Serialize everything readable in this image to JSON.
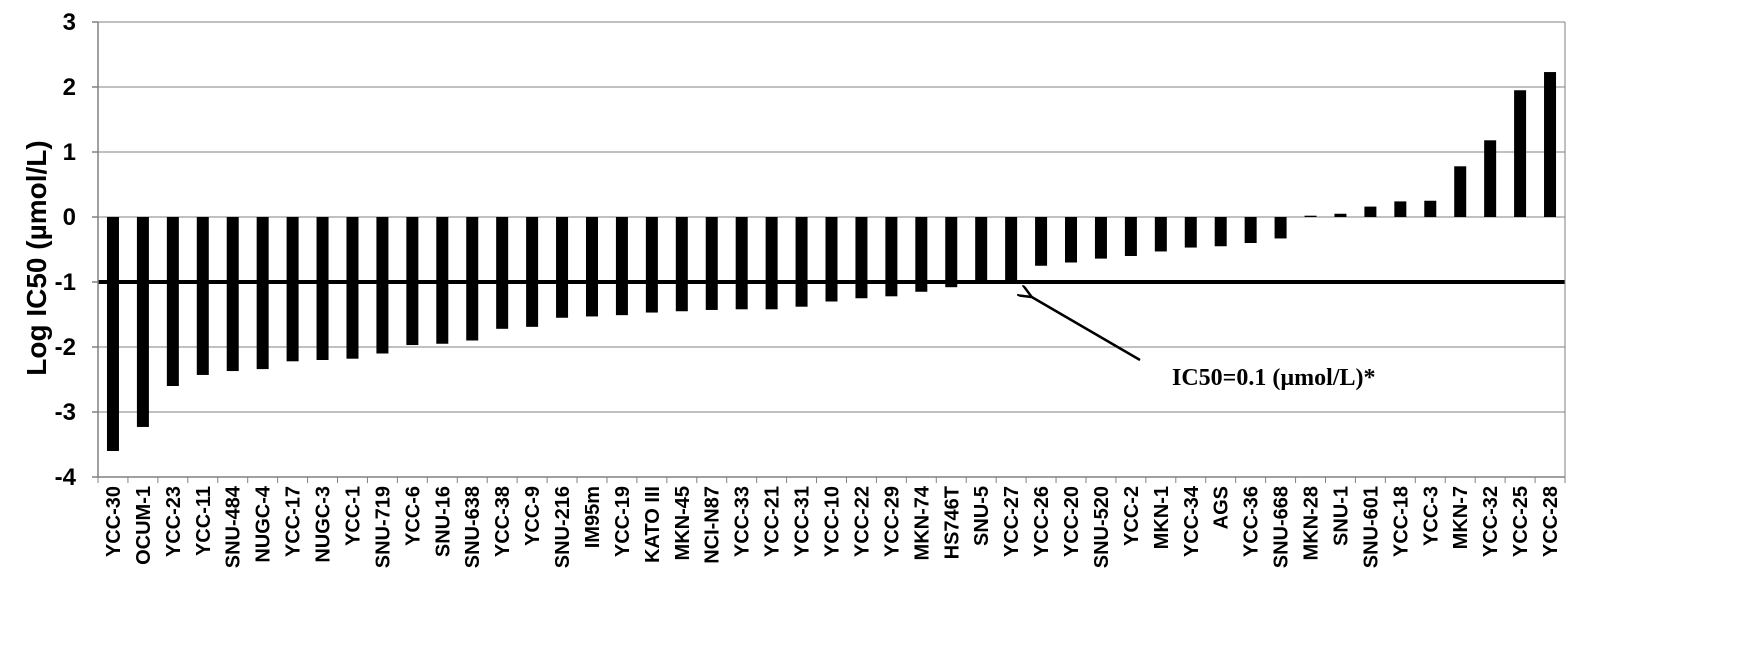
{
  "chart_data": {
    "type": "bar",
    "title": "",
    "xlabel": "",
    "ylabel": "Log IC50 (µmol/L)",
    "ylim": [
      -4,
      3
    ],
    "yticks": [
      3,
      2,
      1,
      0,
      -1,
      -2,
      -3,
      -4
    ],
    "grid": true,
    "legend": "none",
    "bar_color": "#000000",
    "categories": [
      "YCC-30",
      "OCUM-1",
      "YCC-23",
      "YCC-11",
      "SNU-484",
      "NUGC-4",
      "YCC-17",
      "NUGC-3",
      "YCC-1",
      "SNU-719",
      "YCC-6",
      "SNU-16",
      "SNU-638",
      "YCC-38",
      "YCC-9",
      "SNU-216",
      "IM95m",
      "YCC-19",
      "KATO III",
      "MKN-45",
      "NCI-N87",
      "YCC-33",
      "YCC-21",
      "YCC-31",
      "YCC-10",
      "YCC-22",
      "YCC-29",
      "MKN-74",
      "HS746T",
      "SNU-5",
      "YCC-27",
      "YCC-26",
      "YCC-20",
      "SNU-520",
      "YCC-2",
      "MKN-1",
      "YCC-34",
      "AGS",
      "YCC-36",
      "SNU-668",
      "MKN-28",
      "SNU-1",
      "SNU-601",
      "YCC-18",
      "YCC-3",
      "MKN-7",
      "YCC-32",
      "YCC-25",
      "YCC-28"
    ],
    "values": [
      -3.6,
      -3.23,
      -2.6,
      -2.43,
      -2.37,
      -2.34,
      -2.22,
      -2.2,
      -2.18,
      -2.1,
      -1.97,
      -1.95,
      -1.9,
      -1.72,
      -1.69,
      -1.55,
      -1.53,
      -1.51,
      -1.47,
      -1.45,
      -1.43,
      -1.42,
      -1.42,
      -1.38,
      -1.3,
      -1.25,
      -1.22,
      -1.15,
      -1.08,
      -1.0,
      -0.97,
      -0.75,
      -0.7,
      -0.64,
      -0.6,
      -0.53,
      -0.47,
      -0.45,
      -0.4,
      -0.33,
      0.02,
      0.05,
      0.16,
      0.24,
      0.25,
      0.78,
      1.18,
      1.95,
      2.23
    ],
    "reference_line": {
      "y": -1,
      "color": "#000000"
    },
    "annotation": {
      "text": "IC50=0.1 (µmol/L)*",
      "points_to_y": -1
    }
  }
}
